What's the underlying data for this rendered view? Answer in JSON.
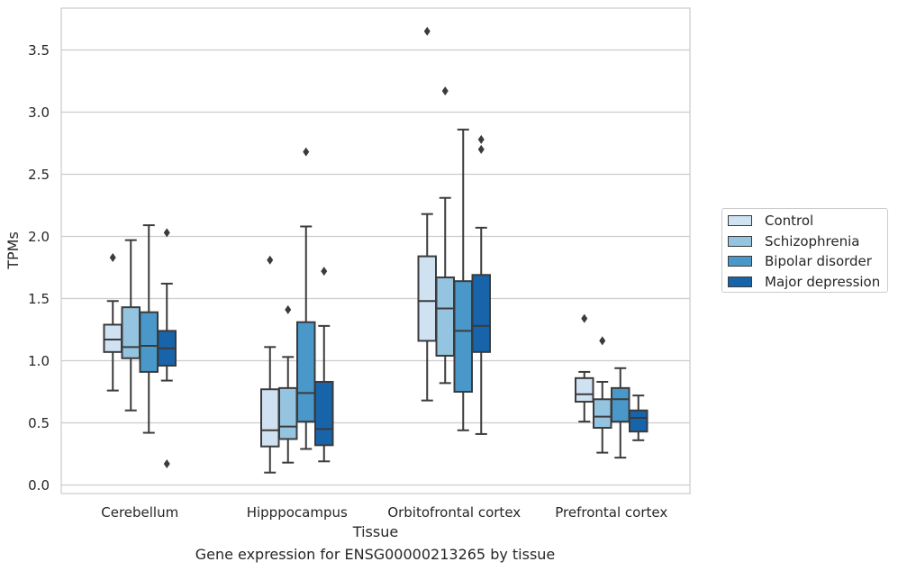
{
  "chart_data": {
    "type": "box",
    "xlabel": "Tissue",
    "ylabel": "TPMs",
    "caption": "Gene expression for ENSG00000213265 by tissue",
    "ylim": [
      -0.06,
      3.8
    ],
    "yticks": [
      "0.0",
      "0.5",
      "1.0",
      "1.5",
      "2.0",
      "2.5",
      "3.0",
      "3.5"
    ],
    "grid": "horizontal",
    "legend_position": "right",
    "categories": [
      "Cerebellum",
      "Hipppocampus",
      "Orbitofrontal cortex",
      "Prefrontal cortex"
    ],
    "series": [
      {
        "name": "Control",
        "color": "#d0e1f2",
        "boxes": [
          {
            "whisker_low": 0.76,
            "q1": 1.07,
            "median": 1.17,
            "q3": 1.29,
            "whisker_high": 1.48,
            "outliers": [
              1.83
            ]
          },
          {
            "whisker_low": 0.1,
            "q1": 0.31,
            "median": 0.44,
            "q3": 0.77,
            "whisker_high": 1.11,
            "outliers": [
              1.81
            ]
          },
          {
            "whisker_low": 0.68,
            "q1": 1.16,
            "median": 1.48,
            "q3": 1.84,
            "whisker_high": 2.18,
            "outliers": [
              3.65
            ]
          },
          {
            "whisker_low": 0.51,
            "q1": 0.67,
            "median": 0.73,
            "q3": 0.86,
            "whisker_high": 0.91,
            "outliers": [
              1.34
            ]
          }
        ]
      },
      {
        "name": "Schizophrenia",
        "color": "#94c4df",
        "boxes": [
          {
            "whisker_low": 0.6,
            "q1": 1.02,
            "median": 1.11,
            "q3": 1.43,
            "whisker_high": 1.97,
            "outliers": []
          },
          {
            "whisker_low": 0.18,
            "q1": 0.37,
            "median": 0.47,
            "q3": 0.78,
            "whisker_high": 1.03,
            "outliers": [
              1.41
            ]
          },
          {
            "whisker_low": 0.82,
            "q1": 1.04,
            "median": 1.42,
            "q3": 1.67,
            "whisker_high": 2.31,
            "outliers": [
              3.17
            ]
          },
          {
            "whisker_low": 0.26,
            "q1": 0.46,
            "median": 0.55,
            "q3": 0.69,
            "whisker_high": 0.83,
            "outliers": [
              1.16
            ]
          }
        ]
      },
      {
        "name": "Bipolar disorder",
        "color": "#4a98c9",
        "boxes": [
          {
            "whisker_low": 0.42,
            "q1": 0.91,
            "median": 1.12,
            "q3": 1.39,
            "whisker_high": 2.09,
            "outliers": []
          },
          {
            "whisker_low": 0.29,
            "q1": 0.51,
            "median": 0.74,
            "q3": 1.31,
            "whisker_high": 2.08,
            "outliers": [
              2.68
            ]
          },
          {
            "whisker_low": 0.44,
            "q1": 0.75,
            "median": 1.24,
            "q3": 1.64,
            "whisker_high": 2.86,
            "outliers": []
          },
          {
            "whisker_low": 0.22,
            "q1": 0.51,
            "median": 0.69,
            "q3": 0.78,
            "whisker_high": 0.94,
            "outliers": []
          }
        ]
      },
      {
        "name": "Major depression",
        "color": "#1764ab",
        "boxes": [
          {
            "whisker_low": 0.84,
            "q1": 0.96,
            "median": 1.1,
            "q3": 1.24,
            "whisker_high": 1.62,
            "outliers": [
              2.03,
              0.17
            ]
          },
          {
            "whisker_low": 0.19,
            "q1": 0.32,
            "median": 0.45,
            "q3": 0.83,
            "whisker_high": 1.28,
            "outliers": [
              1.72
            ]
          },
          {
            "whisker_low": 0.41,
            "q1": 1.07,
            "median": 1.28,
            "q3": 1.69,
            "whisker_high": 2.07,
            "outliers": [
              2.78,
              2.7
            ]
          },
          {
            "whisker_low": 0.36,
            "q1": 0.43,
            "median": 0.54,
            "q3": 0.6,
            "whisker_high": 0.72,
            "outliers": []
          }
        ]
      }
    ]
  }
}
